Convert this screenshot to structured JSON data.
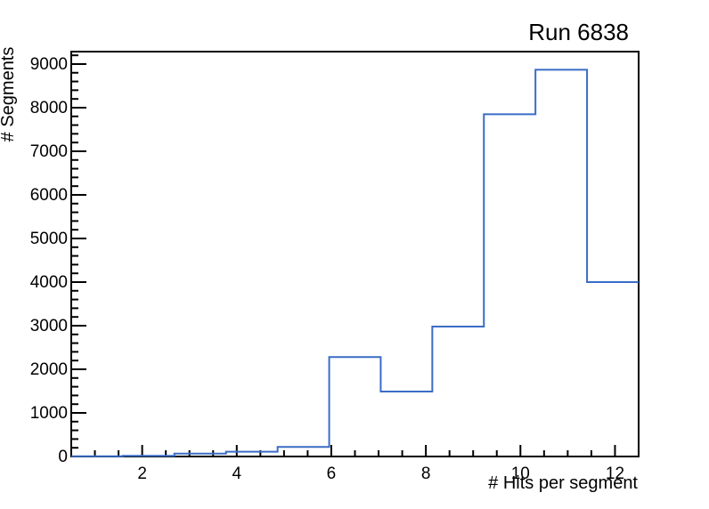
{
  "chart_data": {
    "type": "histogram",
    "title": "Run 6838",
    "xlabel": "# Hits per segment",
    "ylabel": "# Segments",
    "xlim": [
      0.5,
      12.5
    ],
    "ylim": [
      0,
      9285
    ],
    "n_bins": 11,
    "bin_edges": [
      0.5,
      1.591,
      2.682,
      3.773,
      4.864,
      5.955,
      7.045,
      8.136,
      9.227,
      10.318,
      11.409,
      12.5
    ],
    "values": [
      5,
      15,
      65,
      110,
      220,
      2280,
      1490,
      2980,
      7850,
      8870,
      4000
    ],
    "x_major_ticks": [
      2,
      4,
      6,
      8,
      10,
      12
    ],
    "x_major_labels": [
      "2",
      "4",
      "6",
      "8",
      "10",
      "12"
    ],
    "x_minor_step": 0.5,
    "y_major_step": 1000,
    "y_minor_step": 200,
    "y_major_ticks": [
      0,
      1000,
      2000,
      3000,
      4000,
      5000,
      6000,
      7000,
      8000,
      9000
    ],
    "y_major_labels": [
      "0",
      "1000",
      "2000",
      "3000",
      "4000",
      "5000",
      "6000",
      "7000",
      "8000",
      "9000"
    ],
    "line_color": "#3a6cc6",
    "frame_color": "#000000",
    "background_color": "#ffffff",
    "grid": false,
    "legend": null,
    "tick_direction": "in",
    "ticks_on_sides": [
      "left",
      "bottom"
    ]
  }
}
